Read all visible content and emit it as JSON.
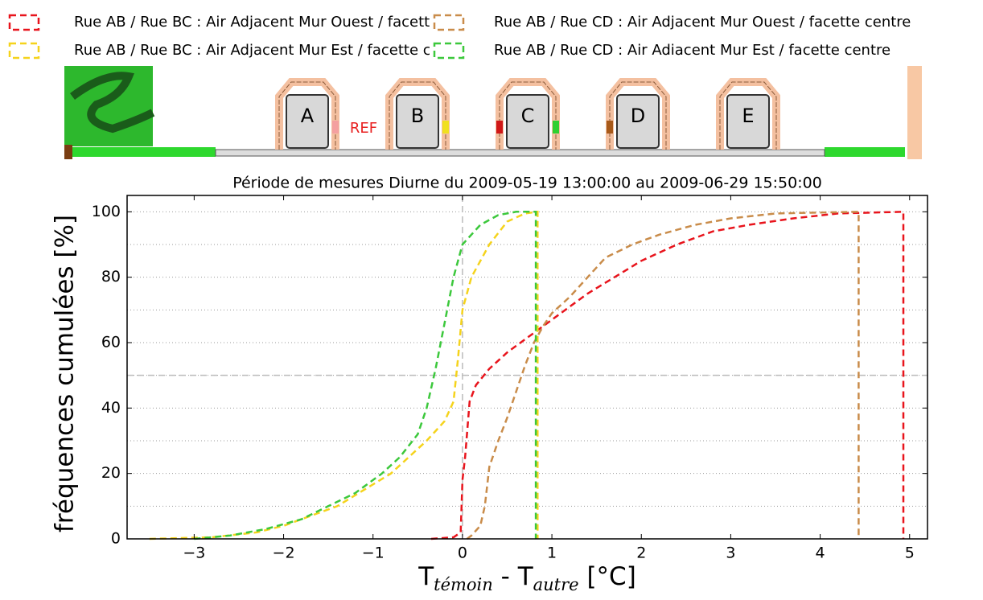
{
  "chart_data": {
    "type": "line",
    "title": "Période de mesures Diurne du 2009-05-19 13:00:00 au 2009-06-29 15:50:00",
    "xlabel_parts": [
      "T",
      "témoin",
      " - T",
      "autre",
      " [°C]"
    ],
    "ylabel": "fréquences cumulées [%]",
    "illustration": {
      "buildings": [
        "A",
        "B",
        "C",
        "D",
        "E"
      ],
      "ref": "REF"
    },
    "xlim": [
      -3.75,
      5.2
    ],
    "ylim": [
      0,
      105
    ],
    "xticks": [
      {
        "value": -3,
        "label": "−3"
      },
      {
        "value": -2,
        "label": "−2"
      },
      {
        "value": -1,
        "label": "−1"
      },
      0,
      1,
      2,
      3,
      4,
      5
    ],
    "yticks": [
      0,
      20,
      40,
      60,
      80,
      100
    ],
    "yminor": [
      10,
      30,
      50,
      70,
      90
    ],
    "hline": 50,
    "vline": 0,
    "grid": true,
    "series": [
      {
        "name": "Rue AB / Rue BC : Air Adjacent Mur Ouest / facette centre",
        "color": "#e8141c",
        "x": [
          -0.35,
          -0.1,
          -0.02,
          0,
          0.03,
          0.08,
          0.15,
          0.3,
          0.5,
          0.7,
          0.9,
          1.1,
          1.4,
          1.7,
          2.0,
          2.4,
          2.8,
          3.2,
          3.7,
          4.2,
          4.93,
          4.93
        ],
        "values": [
          0,
          0.5,
          2,
          18,
          25,
          42,
          47,
          52,
          57,
          61,
          65,
          69,
          75,
          80,
          85,
          90,
          94,
          96,
          98,
          99.5,
          100,
          0
        ]
      },
      {
        "name": "Rue AB / Rue BC : Air Adjacent Mur Est / facette centre",
        "color": "#f5d31c",
        "x": [
          -3.5,
          -2.8,
          -2.3,
          -2,
          -1.7,
          -1.4,
          -1.1,
          -0.8,
          -0.6,
          -0.4,
          -0.2,
          -0.1,
          -0.05,
          0,
          0.1,
          0.3,
          0.5,
          0.7,
          0.84,
          0.84
        ],
        "values": [
          0,
          0.5,
          2,
          4,
          7,
          10,
          15,
          20,
          25,
          30,
          36,
          42,
          55,
          70,
          80,
          90,
          97,
          99.5,
          100,
          0
        ]
      },
      {
        "name": "Rue AB / Rue CD : Air Adjacent Mur Ouest / facette centre",
        "color": "#c98c4a",
        "x": [
          0.05,
          0.1,
          0.2,
          0.25,
          0.3,
          0.4,
          0.5,
          0.6,
          0.7,
          0.8,
          0.9,
          1.0,
          1.2,
          1.4,
          1.6,
          1.9,
          2.2,
          2.6,
          3.0,
          3.5,
          4.43,
          4.43
        ],
        "values": [
          0,
          1,
          4,
          10,
          22,
          30,
          37,
          45,
          53,
          60,
          65,
          69,
          74,
          80,
          86,
          90,
          93,
          96,
          98,
          99.5,
          100,
          0
        ]
      },
      {
        "name": "Rue AB / Rue CD : Air Adiacent Mur Est / facette centre",
        "color": "#3cc83c",
        "x": [
          -3.0,
          -2.6,
          -2.2,
          -1.8,
          -1.5,
          -1.2,
          -0.9,
          -0.7,
          -0.5,
          -0.4,
          -0.3,
          -0.2,
          -0.1,
          0,
          0.2,
          0.4,
          0.6,
          0.82,
          0.82
        ],
        "values": [
          0,
          1,
          3,
          6,
          10,
          14,
          20,
          25,
          32,
          40,
          52,
          66,
          80,
          90,
          96,
          99,
          100,
          100,
          0
        ]
      }
    ]
  }
}
